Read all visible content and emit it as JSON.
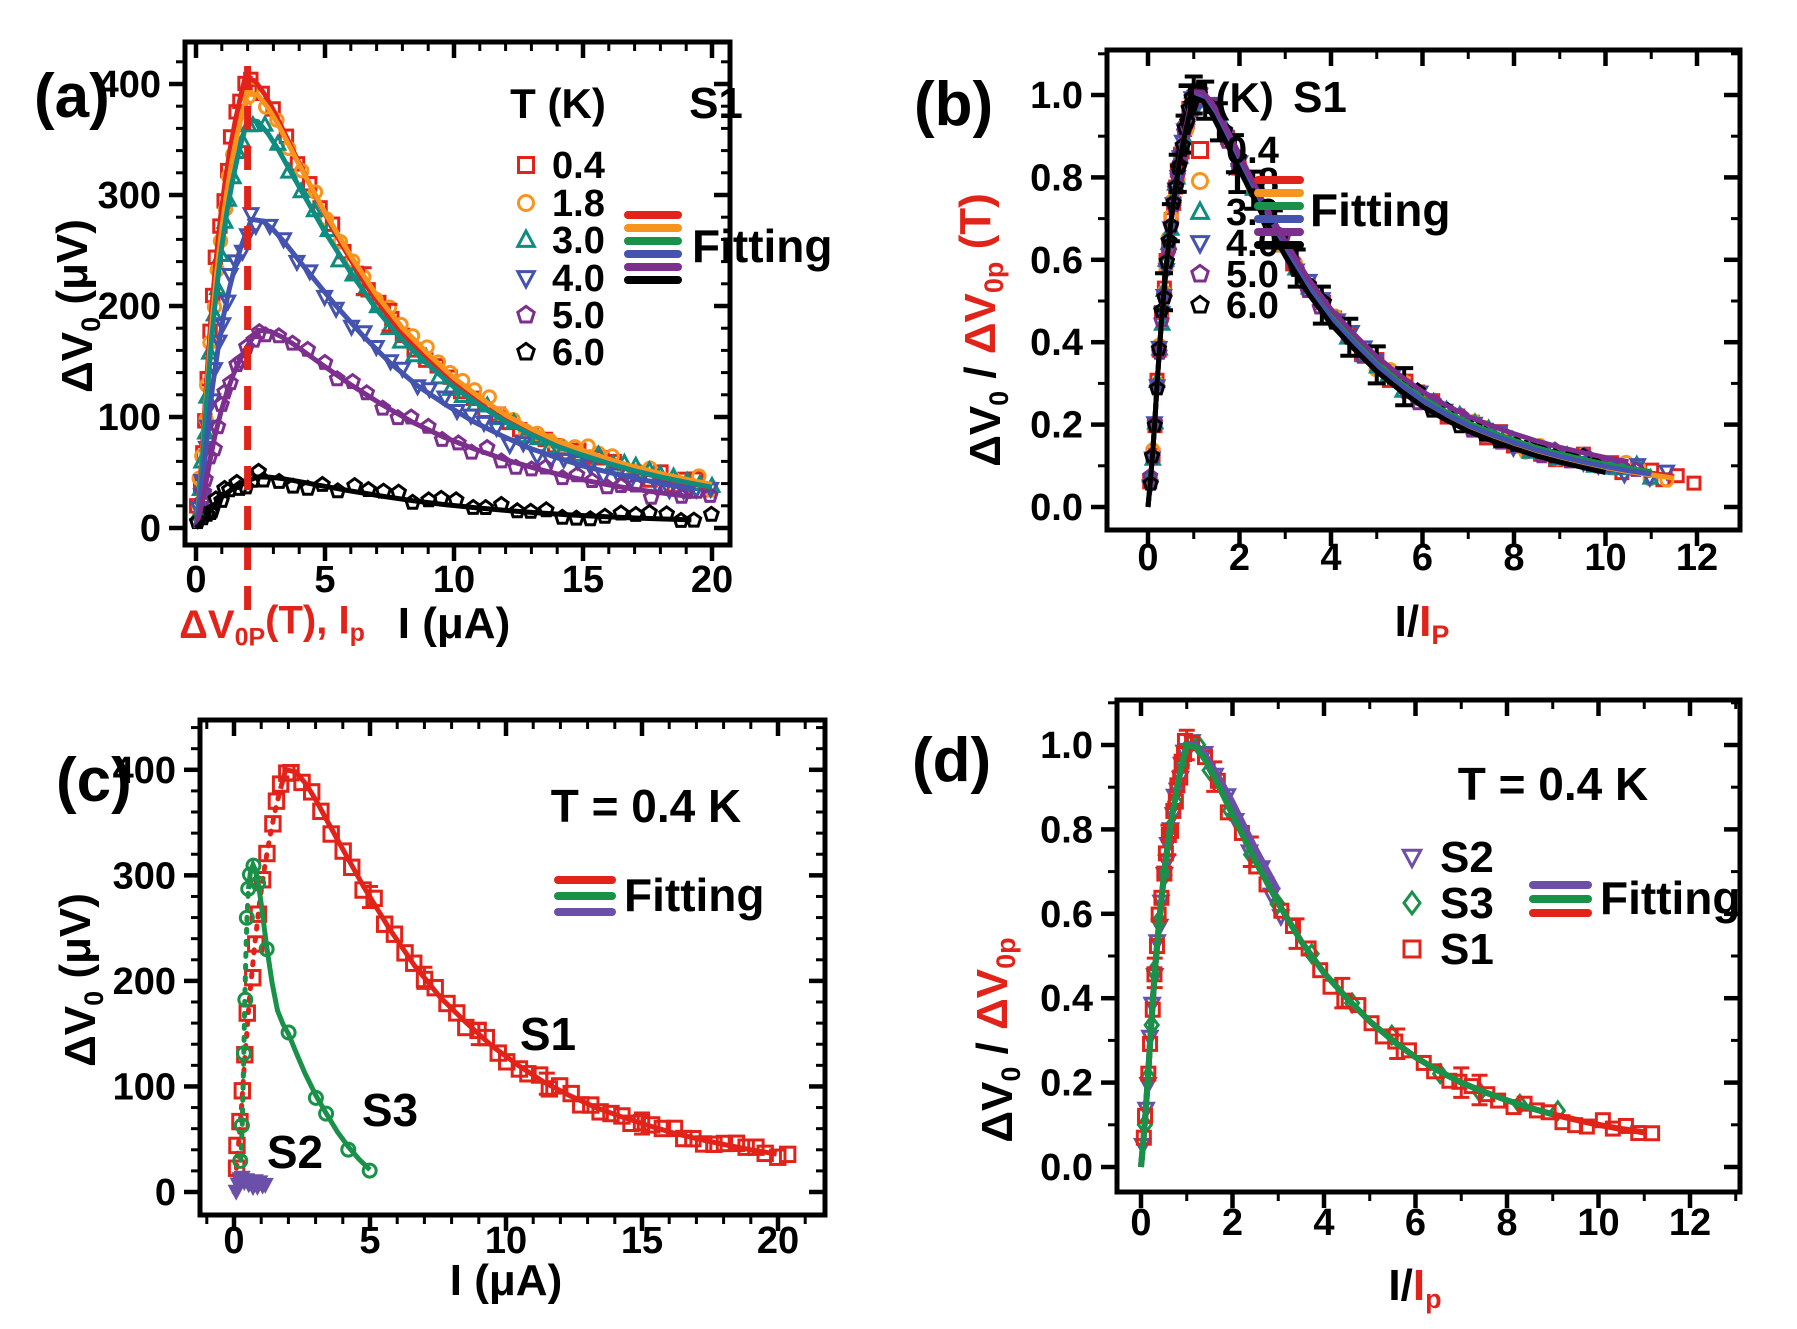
{
  "figure": {
    "background": "#ffffff",
    "accent_red": "#e2231a"
  },
  "palette": {
    "red": "#e2231a",
    "orange": "#f7941e",
    "teal": "#0f8c80",
    "blue": "#4353ae",
    "purple": "#7d2f8d",
    "violet": "#6b4fa8",
    "green": "#1a9148",
    "black": "#000000"
  },
  "master_curve": {
    "x_over_xp": [
      0,
      0.05,
      0.1,
      0.15,
      0.2,
      0.3,
      0.4,
      0.5,
      0.6,
      0.7,
      0.8,
      0.9,
      1.0,
      1.2,
      1.4,
      1.6,
      1.8,
      2.0,
      2.25,
      2.5,
      2.75,
      3.0,
      3.5,
      4.0,
      4.5,
      5.0,
      5.5,
      6.0,
      6.5,
      7.0,
      7.5,
      8.0,
      8.5,
      9.0,
      9.5,
      10.0,
      10.5,
      11.0,
      11.5,
      12.0
    ],
    "v_over_vp": [
      0,
      0.06,
      0.13,
      0.21,
      0.3,
      0.46,
      0.585,
      0.69,
      0.775,
      0.845,
      0.905,
      0.955,
      1.0,
      0.995,
      0.965,
      0.925,
      0.88,
      0.835,
      0.78,
      0.725,
      0.675,
      0.625,
      0.535,
      0.46,
      0.4,
      0.345,
      0.3,
      0.26,
      0.228,
      0.2,
      0.178,
      0.158,
      0.14,
      0.125,
      0.112,
      0.1,
      0.09,
      0.082,
      0.074,
      0.068
    ]
  },
  "chart_data": [
    {
      "panel_label": "(a)",
      "type": "scatter",
      "corner_tag": "S1",
      "legend_title": "T (K)",
      "fitting_label": "Fitting",
      "x_axis": {
        "title_segments": [
          {
            "t": "I (μA)"
          }
        ],
        "tick_labels": [
          "0",
          "5",
          "10",
          "15",
          "20"
        ],
        "tick_values": [
          0,
          5,
          10,
          15,
          20
        ],
        "minor_step": 1,
        "range": [
          -0.4,
          20.7
        ]
      },
      "y_axis": {
        "title_segments": [
          {
            "t": "ΔV"
          },
          {
            "t": "0",
            "sub": true
          },
          {
            "t": " (μV)"
          }
        ],
        "tick_labels": [
          "0",
          "100",
          "200",
          "300",
          "400"
        ],
        "tick_values": [
          0,
          100,
          200,
          300,
          400
        ],
        "minor_step": 20,
        "range": [
          -15,
          438
        ]
      },
      "peak_annotation": {
        "segments": [
          {
            "t": "ΔV",
            "color": "#e2231a"
          },
          {
            "t": "0P",
            "sub": true,
            "color": "#e2231a"
          },
          {
            "t": "(T), I",
            "color": "#e2231a"
          },
          {
            "t": "p",
            "sub": true,
            "color": "#e2231a"
          }
        ],
        "dashed_line_x": 2
      },
      "series": [
        {
          "name": "0.4",
          "color": "#e2231a",
          "marker": "square",
          "peak_value": 405,
          "peak_current": 1.9,
          "u_end": 10.5
        },
        {
          "name": "1.8",
          "color": "#f7941e",
          "marker": "circle",
          "peak_value": 392,
          "peak_current": 2.0,
          "u_end": 10.0
        },
        {
          "name": "3.0",
          "color": "#0f8c80",
          "marker": "triangle-up",
          "peak_value": 368,
          "peak_current": 2.0,
          "u_end": 10.0
        },
        {
          "name": "4.0",
          "color": "#4353ae",
          "marker": "triangle-down",
          "peak_value": 278,
          "peak_current": 2.15,
          "u_end": 9.3
        },
        {
          "name": "5.0",
          "color": "#7d2f8d",
          "marker": "pentagon",
          "peak_value": 178,
          "peak_current": 2.4,
          "u_end": 8.3
        },
        {
          "name": "6.0",
          "color": "#000000",
          "marker": "pentagon",
          "peak_value": 46,
          "peak_current": 2.4,
          "u_end": 8.3
        }
      ],
      "error_bars": {
        "series": "0.4",
        "x": [
          6.5,
          7.5
        ],
        "err": 12
      },
      "fit_line_colors": [
        "#e2231a",
        "#f7941e",
        "#1a9148",
        "#4353ae",
        "#7d2f8d",
        "#000000"
      ]
    },
    {
      "panel_label": "(b)",
      "type": "scatter",
      "corner_tag": "S1",
      "legend_title": "T (K)",
      "fitting_label": "Fitting",
      "x_axis": {
        "title_segments": [
          {
            "t": "I/"
          },
          {
            "t": "I",
            "color": "#e2231a"
          },
          {
            "t": "P",
            "sub": true,
            "color": "#e2231a"
          }
        ],
        "tick_labels": [
          "0",
          "2",
          "4",
          "6",
          "8",
          "10",
          "12"
        ],
        "tick_values": [
          0,
          2,
          4,
          6,
          8,
          10,
          12
        ],
        "minor_step": 1,
        "range": [
          -0.9,
          12.9
        ]
      },
      "y_axis": {
        "title_segments": [
          {
            "t": "ΔV"
          },
          {
            "t": "0",
            "sub": true
          },
          {
            "t": " / "
          },
          {
            "t": "ΔV",
            "color": "#e2231a"
          },
          {
            "t": "0p",
            "sub": true,
            "color": "#e2231a"
          },
          {
            "t": " (T)",
            "color": "#e2231a"
          }
        ],
        "tick_labels": [
          "0.0",
          "0.2",
          "0.4",
          "0.6",
          "0.8",
          "1.0"
        ],
        "tick_values": [
          0,
          0.2,
          0.4,
          0.6,
          0.8,
          1.0
        ],
        "minor_step": 0.1,
        "range": [
          -0.06,
          1.11
        ]
      },
      "series": [
        {
          "name": "0.4",
          "color": "#e2231a",
          "marker": "square",
          "u_end": 11.9,
          "fit_offset": 0
        },
        {
          "name": "1.8",
          "color": "#f7941e",
          "marker": "circle",
          "u_end": 11.5,
          "fit_offset": -0.004
        },
        {
          "name": "3.0",
          "color": "#0f8c80",
          "marker": "triangle-up",
          "u_end": 11.0,
          "fit_offset": 0.004
        },
        {
          "name": "4.0",
          "color": "#4353ae",
          "marker": "triangle-down",
          "u_end": 11.3,
          "fit_offset": -0.002
        },
        {
          "name": "5.0",
          "color": "#7d2f8d",
          "marker": "pentagon",
          "u_end": 10.8,
          "fit_offset": 0.02
        },
        {
          "name": "6.0",
          "color": "#000000",
          "marker": "pentagon",
          "u_end": 10.0,
          "fit_offset": -0.016
        }
      ],
      "error_bars": {
        "series": "6.0",
        "x": [
          0.35,
          0.5,
          0.65,
          0.8,
          1.0,
          1.25,
          1.55,
          1.9,
          2.3,
          2.75,
          3.25,
          3.8,
          4.4,
          5.0,
          5.6
        ],
        "err": 0.045
      },
      "fit_line_colors": [
        "#e2231a",
        "#f7941e",
        "#1a9148",
        "#4353ae",
        "#7d2f8d",
        "#000000"
      ]
    },
    {
      "panel_label": "(c)",
      "type": "scatter",
      "temp_label": "T = 0.4 K",
      "fitting_label": "Fitting",
      "x_axis": {
        "title_segments": [
          {
            "t": "I (μA)"
          }
        ],
        "tick_labels": [
          "0",
          "5",
          "10",
          "15",
          "20"
        ],
        "tick_values": [
          0,
          5,
          10,
          15,
          20
        ],
        "minor_step": 1,
        "range": [
          -1.3,
          21.7
        ]
      },
      "y_axis": {
        "title_segments": [
          {
            "t": "ΔV"
          },
          {
            "t": "0",
            "sub": true
          },
          {
            "t": " (μV)"
          }
        ],
        "tick_labels": [
          "0",
          "100",
          "200",
          "300",
          "400"
        ],
        "tick_values": [
          0,
          100,
          200,
          300,
          400
        ],
        "minor_step": 20,
        "range": [
          -22,
          447
        ]
      },
      "series": [
        {
          "name": "S1",
          "color": "#e2231a",
          "marker": "square",
          "peak_value": 400,
          "peak_current": 1.9,
          "u_end": 10.7
        },
        {
          "name": "S3",
          "color": "#1a9148",
          "marker": "circle",
          "fit_points": [
            [
              0.25,
              30
            ],
            [
              0.3,
              62
            ],
            [
              0.33,
              95
            ],
            [
              0.36,
              132
            ],
            [
              0.4,
              185
            ],
            [
              0.44,
              230
            ],
            [
              0.48,
              262
            ],
            [
              0.53,
              287
            ],
            [
              0.6,
              302
            ],
            [
              0.7,
              310
            ],
            [
              0.8,
              304
            ],
            [
              0.9,
              291
            ],
            [
              1.0,
              273
            ],
            [
              1.2,
              233
            ],
            [
              1.4,
              198
            ],
            [
              1.6,
              172
            ],
            [
              1.8,
              159
            ],
            [
              2.0,
              150
            ],
            [
              2.3,
              131
            ],
            [
              2.6,
              113
            ],
            [
              3.0,
              92
            ],
            [
              3.4,
              74
            ],
            [
              3.8,
              57
            ],
            [
              4.2,
              43
            ],
            [
              4.6,
              31
            ],
            [
              5.0,
              21
            ]
          ],
          "marker_idx": [
            0,
            1,
            3,
            4,
            6,
            7,
            8,
            9,
            11,
            13,
            17,
            20,
            21,
            23,
            25
          ]
        },
        {
          "name": "S2",
          "color": "#6b4fa8",
          "marker": "triangle-down",
          "filled": true,
          "cluster_points": [
            [
              0.08,
              3
            ],
            [
              0.15,
              7
            ],
            [
              0.22,
              11
            ],
            [
              0.3,
              13
            ],
            [
              0.38,
              9
            ],
            [
              0.46,
              12
            ],
            [
              0.54,
              8
            ],
            [
              0.62,
              11
            ],
            [
              0.7,
              7
            ],
            [
              0.78,
              10
            ],
            [
              0.86,
              6
            ],
            [
              0.95,
              9
            ],
            [
              1.05,
              5
            ],
            [
              1.15,
              8
            ]
          ]
        }
      ],
      "error_bars": {
        "series": "S1",
        "x": [
          5,
          7,
          9,
          11.5,
          15
        ],
        "err": 10
      },
      "fit_line_colors": [
        "#e2231a",
        "#1a9148",
        "#6b4fa8"
      ]
    },
    {
      "panel_label": "(d)",
      "type": "scatter",
      "temp_label": "T = 0.4 K",
      "fitting_label": "Fitting",
      "x_axis": {
        "title_segments": [
          {
            "t": "I/"
          },
          {
            "t": "I",
            "color": "#e2231a"
          },
          {
            "t": "p",
            "sub": true,
            "color": "#e2231a"
          }
        ],
        "tick_labels": [
          "0",
          "2",
          "4",
          "6",
          "8",
          "10",
          "12"
        ],
        "tick_values": [
          0,
          2,
          4,
          6,
          8,
          10,
          12
        ],
        "minor_step": 1,
        "range": [
          -0.5,
          13.1
        ]
      },
      "y_axis": {
        "title_segments": [
          {
            "t": "ΔV"
          },
          {
            "t": "0",
            "sub": true
          },
          {
            "t": " / "
          },
          {
            "t": "ΔV",
            "color": "#e2231a"
          },
          {
            "t": "0p",
            "sub": true,
            "color": "#e2231a"
          }
        ],
        "tick_labels": [
          "0.0",
          "0.2",
          "0.4",
          "0.6",
          "0.8",
          "1.0"
        ],
        "tick_values": [
          0,
          0.2,
          0.4,
          0.6,
          0.8,
          1.0
        ],
        "minor_step": 0.1,
        "range": [
          -0.06,
          1.1
        ]
      },
      "series": [
        {
          "name": "S2",
          "color": "#6b4fa8",
          "marker": "triangle-down",
          "u_end": 3.2,
          "fit_offset": 0.03
        },
        {
          "name": "S3",
          "color": "#1a9148",
          "marker": "diamond",
          "u_end": 9.2,
          "fit_offset": 0,
          "us": [
            0.08,
            0.15,
            0.22,
            0.3,
            0.4,
            0.5,
            0.62,
            0.75,
            0.9,
            1.05,
            1.25,
            1.5,
            1.9,
            2.4,
            3.0,
            3.7,
            4.6,
            5.5,
            6.5,
            7.4,
            8.3,
            9.1
          ]
        },
        {
          "name": "S1",
          "color": "#e2231a",
          "marker": "square",
          "u_end": 11.3,
          "fit_offset": 0
        }
      ],
      "error_bars": {
        "series": "S1",
        "x": [
          0.3,
          0.6,
          1.0,
          1.6,
          2.4,
          3.4,
          4.4,
          5.6,
          7.0,
          7.4
        ],
        "err": 0.035
      },
      "fit_line_colors": [
        "#6b4fa8",
        "#1a9148",
        "#e2231a"
      ]
    }
  ]
}
